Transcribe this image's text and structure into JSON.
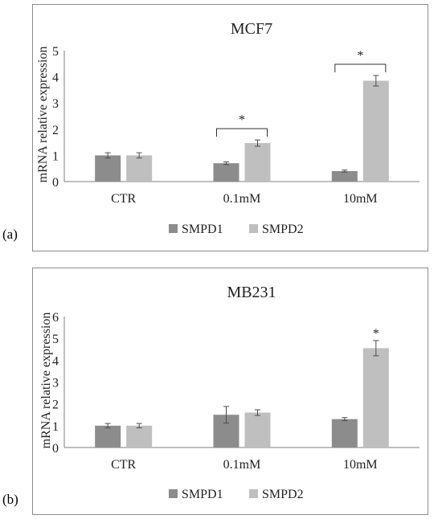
{
  "colors": {
    "SMPD1": "#8c8c8c",
    "SMPD2": "#bfbfbf",
    "axis": "#7f7f7f",
    "error": "#4d4d4d"
  },
  "chart_data": [
    {
      "type": "bar",
      "panel_label": "(a)",
      "title": "MCF7",
      "ylabel": "mRNA relative expression",
      "xlabel": "",
      "categories": [
        "CTR",
        "0.1mM",
        "10mM"
      ],
      "series": [
        {
          "name": "SMPD1",
          "values": [
            1.0,
            0.7,
            0.4
          ],
          "errors": [
            0.1,
            0.05,
            0.04
          ]
        },
        {
          "name": "SMPD2",
          "values": [
            1.0,
            1.47,
            3.85
          ],
          "errors": [
            0.1,
            0.12,
            0.2
          ]
        }
      ],
      "ylim": [
        0,
        5
      ],
      "yticks": [
        0,
        1,
        2,
        3,
        4,
        5
      ],
      "significance": [
        {
          "category": "0.1mM",
          "label": "*",
          "type": "bracket"
        },
        {
          "category": "10mM",
          "label": "*",
          "type": "bracket"
        }
      ],
      "legend": "bottom",
      "grid": false
    },
    {
      "type": "bar",
      "panel_label": "(b)",
      "title": "MB231",
      "ylabel": "mRNA relative expression",
      "xlabel": "",
      "categories": [
        "CTR",
        "0.1mM",
        "10mM"
      ],
      "series": [
        {
          "name": "SMPD1",
          "values": [
            1.0,
            1.5,
            1.3
          ],
          "errors": [
            0.1,
            0.38,
            0.07
          ]
        },
        {
          "name": "SMPD2",
          "values": [
            1.0,
            1.6,
            4.55
          ],
          "errors": [
            0.1,
            0.13,
            0.35
          ]
        }
      ],
      "ylim": [
        0,
        6
      ],
      "yticks": [
        0,
        1,
        2,
        3,
        4,
        5,
        6
      ],
      "significance": [
        {
          "category": "10mM",
          "series": "SMPD2",
          "label": "*",
          "type": "star"
        }
      ],
      "legend": "bottom",
      "grid": false
    }
  ]
}
